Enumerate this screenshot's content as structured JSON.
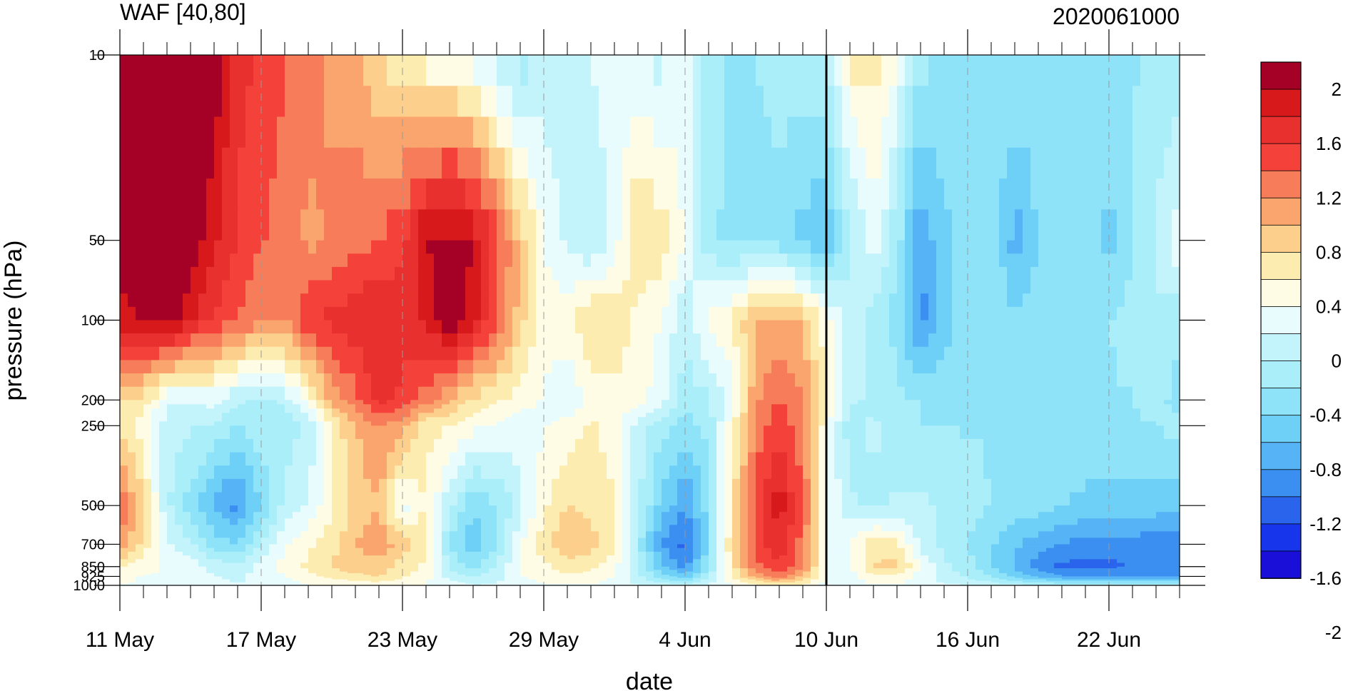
{
  "chart_data": {
    "type": "heatmap",
    "title": "WAF [40,80]",
    "subtitle": "2020061000",
    "xlabel": "date",
    "ylabel": "pressure (hPa)",
    "x_tick_labels": [
      "11 May",
      "17 May",
      "23 May",
      "29 May",
      "4 Jun",
      "10 Jun",
      "16 Jun",
      "22 Jun"
    ],
    "y_tick_labels": [
      "10",
      "50",
      "100",
      "200",
      "250",
      "500",
      "700",
      "850",
      "925",
      "1000"
    ],
    "y_log_scale": true,
    "y_inverted": true,
    "colorbar_labels": [
      "2",
      "1.6",
      "1.2",
      "0.8",
      "0.4",
      "0",
      "-0.4",
      "-0.8",
      "-1.2",
      "-1.6",
      "-2"
    ],
    "colorbar_colors": [
      "#a50026",
      "#d7191c",
      "#e8312f",
      "#f4413a",
      "#f67c5a",
      "#fba56e",
      "#fdcf8c",
      "#fdecb0",
      "#fffce6",
      "#e8fbfd",
      "#c4f4fb",
      "#aaeefa",
      "#8fe3f8",
      "#6fd0f7",
      "#56b3f5",
      "#3b8ff0",
      "#2a63ec",
      "#1735ea",
      "#1a0fd8"
    ],
    "dates": [
      "11 May",
      "12 May",
      "13 May",
      "14 May",
      "15 May",
      "16 May",
      "17 May",
      "18 May",
      "19 May",
      "20 May",
      "21 May",
      "22 May",
      "23 May",
      "24 May",
      "25 May",
      "26 May",
      "27 May",
      "28 May",
      "29 May",
      "30 May",
      "31 May",
      "1 Jun",
      "2 Jun",
      "3 Jun",
      "4 Jun",
      "5 Jun",
      "6 Jun",
      "7 Jun",
      "8 Jun",
      "9 Jun",
      "10 Jun",
      "11 Jun",
      "12 Jun",
      "13 Jun",
      "14 Jun",
      "15 Jun",
      "16 Jun",
      "17 Jun",
      "18 Jun",
      "19 Jun",
      "20 Jun",
      "21 Jun",
      "22 Jun",
      "23 Jun",
      "24 Jun",
      "25 Jun"
    ],
    "levels": [
      10,
      50,
      100,
      200,
      250,
      500,
      700,
      850,
      925,
      1000
    ],
    "values": [
      [
        2.2,
        2.2,
        2.2,
        2.2,
        2.2,
        1.6,
        1.5,
        1.3,
        1.2,
        1.0,
        0.9,
        0.6,
        0.4,
        0.2,
        0.1,
        0.0,
        -0.3,
        -0.5,
        -0.3,
        -0.2,
        -0.1,
        0.0,
        -0.1,
        -0.2,
        0.0,
        -0.5,
        -0.6,
        -0.6,
        -0.5,
        -0.4,
        -0.3,
        0.4,
        0.5,
        0.1,
        -0.5,
        -0.6,
        -0.6,
        -0.6,
        -0.6,
        -0.6,
        -0.6,
        -0.6,
        -0.6,
        -0.6,
        -0.6,
        -0.6
      ],
      [
        2.2,
        2.2,
        2.2,
        2.2,
        1.8,
        1.5,
        1.3,
        1.2,
        1.0,
        1.1,
        1.2,
        1.3,
        1.5,
        2.0,
        2.2,
        2.0,
        1.4,
        0.8,
        0.1,
        -0.2,
        -0.4,
        0.0,
        0.6,
        0.5,
        0.1,
        -0.5,
        -0.7,
        -0.6,
        -0.7,
        -0.9,
        -1.1,
        -0.4,
        0.0,
        -0.5,
        -1.3,
        -0.9,
        -0.6,
        -0.6,
        -1.2,
        -0.8,
        -0.6,
        -0.6,
        -0.9,
        -0.6,
        -0.3,
        0.1
      ],
      [
        1.9,
        2.0,
        2.2,
        1.8,
        1.5,
        1.3,
        1.1,
        1.1,
        1.5,
        1.6,
        1.7,
        1.8,
        1.6,
        1.8,
        2.2,
        1.9,
        1.3,
        0.7,
        0.2,
        0.3,
        0.6,
        0.5,
        0.3,
        0.1,
        -0.3,
        0.2,
        0.4,
        0.8,
        0.9,
        0.8,
        0.2,
        -0.3,
        -0.4,
        -0.7,
        -1.4,
        -1.0,
        -0.6,
        -0.6,
        -0.8,
        -0.7,
        -0.6,
        -0.6,
        -0.6,
        -0.5,
        -0.4,
        -0.5
      ],
      [
        0.6,
        0.5,
        -0.1,
        -0.1,
        0.0,
        -0.3,
        -0.4,
        -0.3,
        0.2,
        0.9,
        1.2,
        1.6,
        1.5,
        1.2,
        0.8,
        0.5,
        0.4,
        0.2,
        0.1,
        -0.1,
        0.2,
        0.3,
        0.2,
        0.0,
        -0.5,
        -0.4,
        0.0,
        1.0,
        1.3,
        1.1,
        0.3,
        -0.3,
        -0.4,
        -0.5,
        -0.6,
        -0.6,
        -0.6,
        -0.6,
        -0.6,
        -0.6,
        -0.6,
        -0.7,
        -0.6,
        -0.6,
        -0.5,
        -0.7
      ],
      [
        0.5,
        0.2,
        -0.2,
        -0.3,
        -0.4,
        -0.6,
        -0.4,
        -0.5,
        -0.3,
        0.4,
        0.8,
        1.1,
        0.9,
        0.4,
        0.4,
        0.2,
        0.1,
        0.0,
        0.1,
        0.2,
        0.4,
        0.2,
        -0.2,
        -0.5,
        -0.7,
        -0.5,
        0.3,
        1.1,
        1.5,
        1.1,
        0.2,
        -0.5,
        -0.3,
        -0.5,
        -0.6,
        -0.6,
        -0.6,
        -0.6,
        -0.6,
        -0.6,
        -0.6,
        -0.6,
        -0.6,
        -0.6,
        -0.6,
        -0.5
      ],
      [
        1.3,
        0.6,
        -0.3,
        -0.7,
        -1.1,
        -1.4,
        -0.8,
        -0.3,
        -0.1,
        0.3,
        0.7,
        0.8,
        0.0,
        0.4,
        -0.3,
        -0.8,
        -0.6,
        -0.2,
        0.3,
        0.6,
        0.5,
        0.4,
        -0.3,
        -0.9,
        -1.3,
        -0.7,
        0.5,
        1.4,
        1.9,
        1.3,
        0.1,
        -0.3,
        -0.4,
        -0.3,
        -0.3,
        -0.4,
        -0.5,
        -0.6,
        -0.7,
        -0.7,
        -0.8,
        -0.9,
        -0.9,
        -0.9,
        -0.9,
        -1.0
      ],
      [
        1.0,
        0.5,
        -0.1,
        -0.3,
        -0.7,
        -0.8,
        -0.3,
        0.1,
        0.3,
        0.5,
        0.8,
        1.0,
        0.7,
        0.4,
        -0.6,
        -1.0,
        -0.6,
        0.1,
        0.5,
        0.8,
        0.7,
        0.4,
        -0.5,
        -1.3,
        -1.6,
        -0.8,
        0.6,
        1.4,
        1.7,
        1.2,
        0.1,
        0.1,
        0.5,
        0.4,
        -0.2,
        -0.4,
        -0.6,
        -0.8,
        -1.0,
        -1.2,
        -1.3,
        -1.4,
        -1.4,
        -1.4,
        -1.5,
        -1.5
      ],
      [
        0.4,
        0.2,
        0.1,
        0.0,
        -0.2,
        -0.3,
        0.0,
        0.2,
        0.4,
        0.6,
        0.8,
        0.7,
        0.5,
        0.3,
        -0.4,
        -0.7,
        -0.3,
        0.1,
        0.3,
        0.5,
        0.4,
        0.2,
        -0.4,
        -1.0,
        -1.4,
        -0.6,
        0.5,
        1.2,
        1.5,
        1.1,
        0.1,
        0.1,
        0.6,
        0.7,
        0.1,
        -0.3,
        -0.5,
        -0.8,
        -1.1,
        -1.4,
        -1.6,
        -1.6,
        -1.6,
        -1.5,
        -1.5,
        -1.5
      ],
      [
        0.2,
        0.1,
        0.1,
        0.0,
        -0.1,
        -0.2,
        0.0,
        0.1,
        0.3,
        0.4,
        0.5,
        0.6,
        0.4,
        0.2,
        -0.2,
        -0.4,
        -0.2,
        0.1,
        0.2,
        0.3,
        0.3,
        0.1,
        -0.3,
        -0.7,
        -1.0,
        -0.4,
        0.4,
        0.9,
        1.2,
        0.8,
        0.1,
        0.0,
        0.3,
        0.3,
        0.0,
        -0.2,
        -0.4,
        -0.6,
        -0.9,
        -1.1,
        -1.3,
        -1.3,
        -1.3,
        -1.3,
        -1.3,
        -1.3
      ],
      [
        0.1,
        0.1,
        0.0,
        0.0,
        0.0,
        -0.1,
        0.0,
        0.0,
        0.1,
        0.2,
        0.2,
        0.2,
        0.2,
        0.1,
        0.0,
        -0.1,
        -0.1,
        0.0,
        0.1,
        0.1,
        0.1,
        0.0,
        -0.1,
        -0.2,
        -0.3,
        -0.1,
        0.1,
        0.3,
        0.4,
        0.3,
        0.0,
        0.0,
        0.1,
        0.1,
        0.0,
        -0.1,
        -0.1,
        -0.2,
        -0.3,
        -0.3,
        -0.4,
        -0.4,
        -0.4,
        -0.4,
        -0.4,
        -0.4
      ]
    ]
  }
}
